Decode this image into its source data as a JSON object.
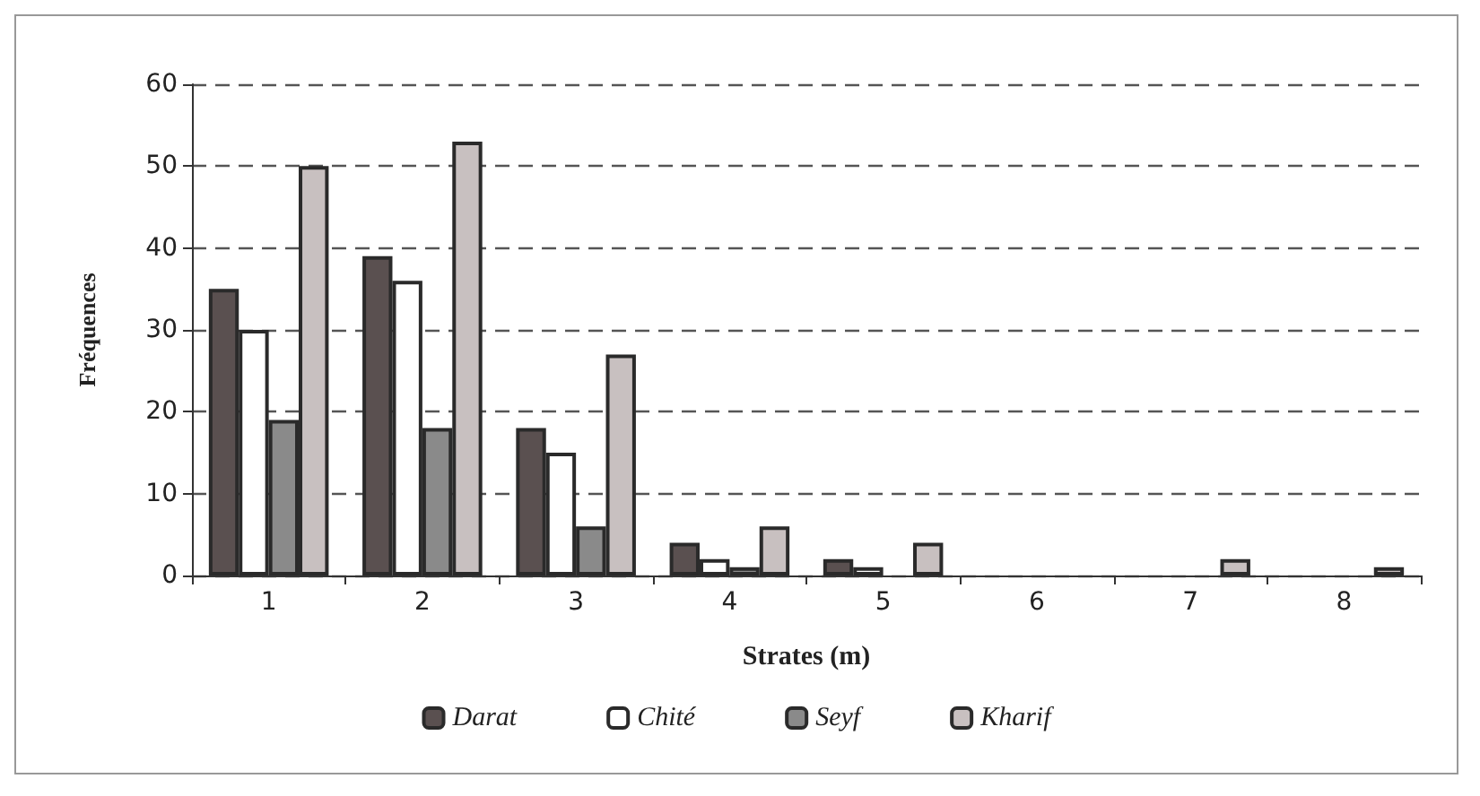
{
  "chart_data": {
    "type": "bar",
    "xlabel": "Strates (m)",
    "ylabel": "Fréquences",
    "categories": [
      "1",
      "2",
      "3",
      "4",
      "5",
      "6",
      "7",
      "8"
    ],
    "series": [
      {
        "name": "Darat",
        "color": "#5a5050",
        "values": [
          35,
          39,
          18,
          4,
          2,
          0,
          0,
          0
        ]
      },
      {
        "name": "Chité",
        "color": "#ffffff",
        "values": [
          30,
          36,
          15,
          2,
          1,
          0,
          0,
          0
        ]
      },
      {
        "name": "Seyf",
        "color": "#8a8a8a",
        "values": [
          19,
          18,
          6,
          1,
          0,
          0,
          0,
          0
        ]
      },
      {
        "name": "Kharif",
        "color": "#c8c0c0",
        "values": [
          50,
          53,
          27,
          6,
          4,
          0,
          2,
          1
        ]
      }
    ],
    "ylim": [
      0,
      60
    ],
    "yticks": [
      0,
      10,
      20,
      30,
      40,
      50,
      60
    ],
    "grid": "y",
    "legend": "bottom"
  }
}
